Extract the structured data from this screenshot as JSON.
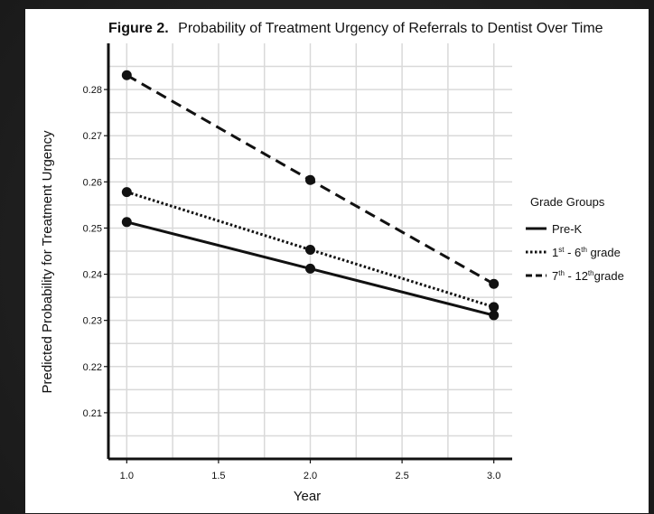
{
  "chart_data": {
    "type": "line",
    "title_prefix": "Figure 2.",
    "title": "Probability of Treatment Urgency of Referrals to Dentist Over Time",
    "xlabel": "Year",
    "ylabel": "Predicted Probability for Treatment Urgency",
    "x": [
      1.0,
      2.0,
      3.0
    ],
    "xlim": [
      0.9,
      3.1
    ],
    "ylim": [
      0.2,
      0.29
    ],
    "xticks": [
      "1.0",
      "1.5",
      "2.0",
      "2.5",
      "3.0"
    ],
    "xtick_values": [
      1.0,
      1.5,
      2.0,
      2.5,
      3.0
    ],
    "yticks": [
      "0.21",
      "0.22",
      "0.23",
      "0.24",
      "0.25",
      "0.26",
      "0.27",
      "0.28"
    ],
    "ytick_values": [
      0.21,
      0.22,
      0.23,
      0.24,
      0.25,
      0.26,
      0.27,
      0.28
    ],
    "grid": true,
    "legend_title": "Grade Groups",
    "legend_position": "right",
    "series": [
      {
        "name": "Pre-K",
        "dash": "solid",
        "values": [
          0.2513,
          0.2412,
          0.2311
        ]
      },
      {
        "name_main": "1",
        "name_sup": "st",
        "name_mid": " - 6",
        "name_sup2": "th",
        "name_tail": " grade",
        "dash": "dotted",
        "values": [
          0.2578,
          0.2453,
          0.2329
        ]
      },
      {
        "name_main": "7",
        "name_sup": "th",
        "name_mid": " - 12",
        "name_sup2": "th",
        "name_tail": "grade",
        "dash": "dashed",
        "values": [
          0.2831,
          0.2604,
          0.2379
        ]
      }
    ]
  },
  "colors": {
    "line": "#111111",
    "grid": "#d9d9d9",
    "background": "#ffffff"
  }
}
